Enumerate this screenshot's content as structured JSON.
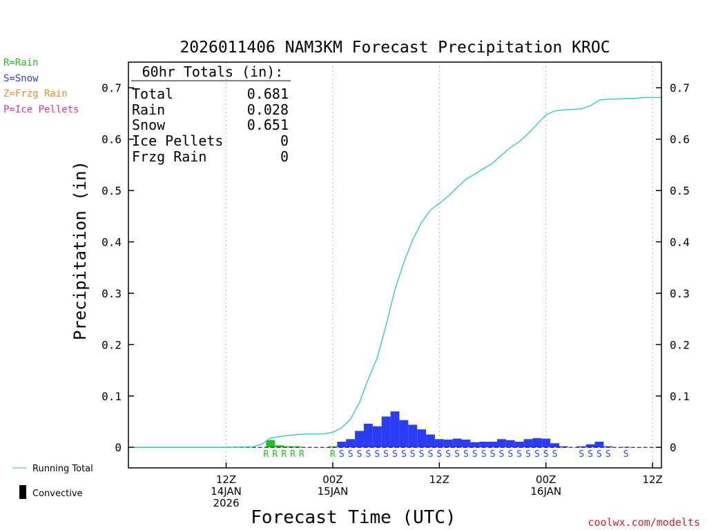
{
  "chart_data": {
    "type": "bar",
    "title": "2026011406 NAM3KM Forecast Precipitation KROC",
    "xlabel": "Forecast Time (UTC)",
    "ylabel": "Precipitation (in)",
    "ylim": [
      -0.04,
      0.75
    ],
    "xlim": [
      -5,
      55
    ],
    "yticks": [
      0,
      0.1,
      0.2,
      0.3,
      0.4,
      0.5,
      0.6,
      0.7
    ],
    "ytick_labels": [
      "0",
      "0.1",
      "0.2",
      "0.3",
      "0.4",
      "0.5",
      "0.6",
      "0.7"
    ],
    "xticks": [
      {
        "hour": 6,
        "lines": [
          "12Z",
          "14JAN",
          "2026"
        ]
      },
      {
        "hour": 18,
        "lines": [
          "00Z",
          "15JAN"
        ]
      },
      {
        "hour": 30,
        "lines": [
          "12Z"
        ]
      },
      {
        "hour": 42,
        "lines": [
          "00Z",
          "16JAN"
        ]
      },
      {
        "hour": 54,
        "lines": [
          "12Z"
        ]
      }
    ],
    "legend": [
      {
        "label": "R=Rain",
        "color": "#22c022"
      },
      {
        "label": "S=Snow",
        "color": "#2a3df5"
      },
      {
        "label": "Z=Frzg Rain",
        "color": "#f08a2a"
      },
      {
        "label": "P=Ice Pellets",
        "color": "#e83090"
      }
    ],
    "side_legend": {
      "running_total": "Running Total",
      "convective": "Convective"
    },
    "totals": {
      "header": "60hr Totals (in):",
      "rows": [
        {
          "label": "Total",
          "value": "0.681"
        },
        {
          "label": "Rain",
          "value": "0.028"
        },
        {
          "label": "Snow",
          "value": "0.651"
        },
        {
          "label": "Ice Pellets",
          "value": "0"
        },
        {
          "label": "Frzg Rain",
          "value": "0"
        }
      ]
    },
    "series": [
      {
        "name": "Rain",
        "color": "#22c022",
        "type": "bar",
        "bars": [
          {
            "hour": 11,
            "value": 0.014
          },
          {
            "hour": 12,
            "value": 0.004
          },
          {
            "hour": 13,
            "value": 0.002
          },
          {
            "hour": 14,
            "value": 0.002
          },
          {
            "hour": 18,
            "value": 0.002
          }
        ]
      },
      {
        "name": "Snow",
        "color": "#2a3df5",
        "type": "bar",
        "bars": [
          {
            "hour": 19,
            "value": 0.011
          },
          {
            "hour": 20,
            "value": 0.016
          },
          {
            "hour": 21,
            "value": 0.032
          },
          {
            "hour": 22,
            "value": 0.046
          },
          {
            "hour": 23,
            "value": 0.041
          },
          {
            "hour": 24,
            "value": 0.06
          },
          {
            "hour": 25,
            "value": 0.07
          },
          {
            "hour": 26,
            "value": 0.053
          },
          {
            "hour": 27,
            "value": 0.044
          },
          {
            "hour": 28,
            "value": 0.035
          },
          {
            "hour": 29,
            "value": 0.025
          },
          {
            "hour": 30,
            "value": 0.016
          },
          {
            "hour": 31,
            "value": 0.015
          },
          {
            "hour": 32,
            "value": 0.017
          },
          {
            "hour": 33,
            "value": 0.015
          },
          {
            "hour": 34,
            "value": 0.01
          },
          {
            "hour": 35,
            "value": 0.011
          },
          {
            "hour": 36,
            "value": 0.011
          },
          {
            "hour": 37,
            "value": 0.016
          },
          {
            "hour": 38,
            "value": 0.014
          },
          {
            "hour": 39,
            "value": 0.011
          },
          {
            "hour": 40,
            "value": 0.016
          },
          {
            "hour": 41,
            "value": 0.018
          },
          {
            "hour": 42,
            "value": 0.017
          },
          {
            "hour": 43,
            "value": 0.008
          },
          {
            "hour": 44,
            "value": 0.002
          },
          {
            "hour": 46,
            "value": 0.002
          },
          {
            "hour": 47,
            "value": 0.006
          },
          {
            "hour": 48,
            "value": 0.011
          },
          {
            "hour": 49,
            "value": 0.002
          },
          {
            "hour": 51,
            "value": 0.001
          }
        ]
      },
      {
        "name": "Running Total",
        "color": "#22c8c8",
        "type": "line",
        "points": [
          [
            -4.4,
            0
          ],
          [
            5,
            0
          ],
          [
            9,
            0.001
          ],
          [
            10,
            0.006
          ],
          [
            10.5,
            0.012
          ],
          [
            11,
            0.018
          ],
          [
            12,
            0.021
          ],
          [
            13,
            0.023
          ],
          [
            14,
            0.025
          ],
          [
            15,
            0.026
          ],
          [
            16,
            0.026
          ],
          [
            17,
            0.026
          ],
          [
            18,
            0.029
          ],
          [
            19,
            0.038
          ],
          [
            20,
            0.055
          ],
          [
            21,
            0.087
          ],
          [
            22,
            0.133
          ],
          [
            23,
            0.174
          ],
          [
            24,
            0.237
          ],
          [
            25,
            0.307
          ],
          [
            26,
            0.36
          ],
          [
            27,
            0.404
          ],
          [
            28,
            0.438
          ],
          [
            29,
            0.462
          ],
          [
            30,
            0.475
          ],
          [
            31,
            0.489
          ],
          [
            32,
            0.506
          ],
          [
            33,
            0.522
          ],
          [
            34,
            0.532
          ],
          [
            35,
            0.543
          ],
          [
            36,
            0.553
          ],
          [
            37,
            0.569
          ],
          [
            38,
            0.584
          ],
          [
            39,
            0.595
          ],
          [
            40,
            0.611
          ],
          [
            41,
            0.629
          ],
          [
            42,
            0.647
          ],
          [
            43,
            0.655
          ],
          [
            44,
            0.657
          ],
          [
            45,
            0.658
          ],
          [
            46,
            0.659
          ],
          [
            47,
            0.665
          ],
          [
            48,
            0.676
          ],
          [
            49,
            0.678
          ],
          [
            50,
            0.678
          ],
          [
            51,
            0.679
          ],
          [
            52,
            0.679
          ],
          [
            53,
            0.681
          ],
          [
            54,
            0.681
          ],
          [
            55,
            0.681
          ]
        ]
      }
    ],
    "ptype_labels": [
      {
        "hour": 10.5,
        "text": "R",
        "color": "#22c022"
      },
      {
        "hour": 11.5,
        "text": "R",
        "color": "#22c022"
      },
      {
        "hour": 12.5,
        "text": "R",
        "color": "#22c022"
      },
      {
        "hour": 13.5,
        "text": "R",
        "color": "#22c022"
      },
      {
        "hour": 14.5,
        "text": "R",
        "color": "#22c022"
      },
      {
        "hour": 18.0,
        "text": "R",
        "color": "#22c022"
      },
      {
        "hour": 19.0,
        "text": "S",
        "color": "#2a3df5"
      },
      {
        "hour": 20.0,
        "text": "S",
        "color": "#2a3df5"
      },
      {
        "hour": 21.0,
        "text": "S",
        "color": "#2a3df5"
      },
      {
        "hour": 22.0,
        "text": "S",
        "color": "#2a3df5"
      },
      {
        "hour": 23.0,
        "text": "S",
        "color": "#2a3df5"
      },
      {
        "hour": 24.0,
        "text": "S",
        "color": "#2a3df5"
      },
      {
        "hour": 25.0,
        "text": "S",
        "color": "#2a3df5"
      },
      {
        "hour": 26.0,
        "text": "S",
        "color": "#2a3df5"
      },
      {
        "hour": 27.0,
        "text": "S",
        "color": "#2a3df5"
      },
      {
        "hour": 28.0,
        "text": "S",
        "color": "#2a3df5"
      },
      {
        "hour": 29.0,
        "text": "S",
        "color": "#2a3df5"
      },
      {
        "hour": 30.0,
        "text": "S",
        "color": "#2a3df5"
      },
      {
        "hour": 31.0,
        "text": "S",
        "color": "#2a3df5"
      },
      {
        "hour": 32.0,
        "text": "S",
        "color": "#2a3df5"
      },
      {
        "hour": 33.0,
        "text": "S",
        "color": "#2a3df5"
      },
      {
        "hour": 34.0,
        "text": "S",
        "color": "#2a3df5"
      },
      {
        "hour": 35.0,
        "text": "S",
        "color": "#2a3df5"
      },
      {
        "hour": 36.0,
        "text": "S",
        "color": "#2a3df5"
      },
      {
        "hour": 37.0,
        "text": "S",
        "color": "#2a3df5"
      },
      {
        "hour": 38.0,
        "text": "S",
        "color": "#2a3df5"
      },
      {
        "hour": 39.0,
        "text": "S",
        "color": "#2a3df5"
      },
      {
        "hour": 40.0,
        "text": "S",
        "color": "#2a3df5"
      },
      {
        "hour": 41.0,
        "text": "S",
        "color": "#2a3df5"
      },
      {
        "hour": 42.0,
        "text": "S",
        "color": "#2a3df5"
      },
      {
        "hour": 43.0,
        "text": "S",
        "color": "#2a3df5"
      },
      {
        "hour": 46.0,
        "text": "S",
        "color": "#2a3df5"
      },
      {
        "hour": 47.0,
        "text": "S",
        "color": "#2a3df5"
      },
      {
        "hour": 48.0,
        "text": "S",
        "color": "#2a3df5"
      },
      {
        "hour": 49.0,
        "text": "S",
        "color": "#2a3df5"
      },
      {
        "hour": 51.0,
        "text": "S",
        "color": "#2a3df5"
      }
    ],
    "credit": "coolwx.com/modelts"
  }
}
